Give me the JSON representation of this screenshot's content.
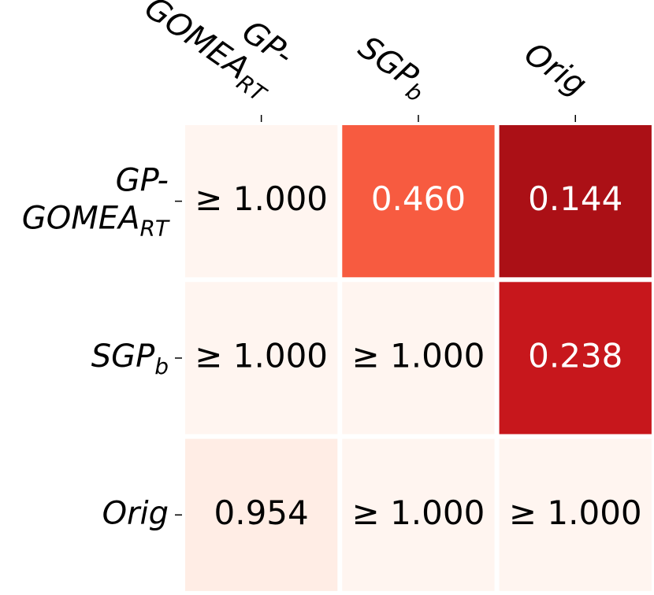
{
  "chart_data": {
    "type": "heatmap",
    "x_categories": [
      {
        "lines": [
          "GP-",
          "GOMEA"
        ],
        "subscript": "RT"
      },
      {
        "lines": [
          "SGP"
        ],
        "subscript": "b"
      },
      {
        "lines": [
          "Orig"
        ]
      }
    ],
    "y_categories": [
      {
        "lines": [
          "GP-",
          "GOMEA"
        ],
        "subscript": "RT"
      },
      {
        "lines": [
          "SGP"
        ],
        "subscript": "b"
      },
      {
        "lines": [
          "Orig"
        ]
      }
    ],
    "values": [
      [
        1,
        0.46,
        0.144
      ],
      [
        1,
        1,
        0.238
      ],
      [
        0.954,
        1,
        1
      ]
    ],
    "value_labels": [
      [
        "≥ 1.000",
        "0.460",
        "0.144"
      ],
      [
        "≥ 1.000",
        "≥ 1.000",
        "0.238"
      ],
      [
        "0.954",
        "≥ 1.000",
        "≥ 1.000"
      ]
    ],
    "clim": [
      0,
      1
    ],
    "colormap": [
      "#67000d",
      "#a50f15",
      "#cb181d",
      "#ef3b2c",
      "#fb6a4a",
      "#fc9272",
      "#fcbba1",
      "#fee0d2",
      "#fff5f0"
    ]
  }
}
